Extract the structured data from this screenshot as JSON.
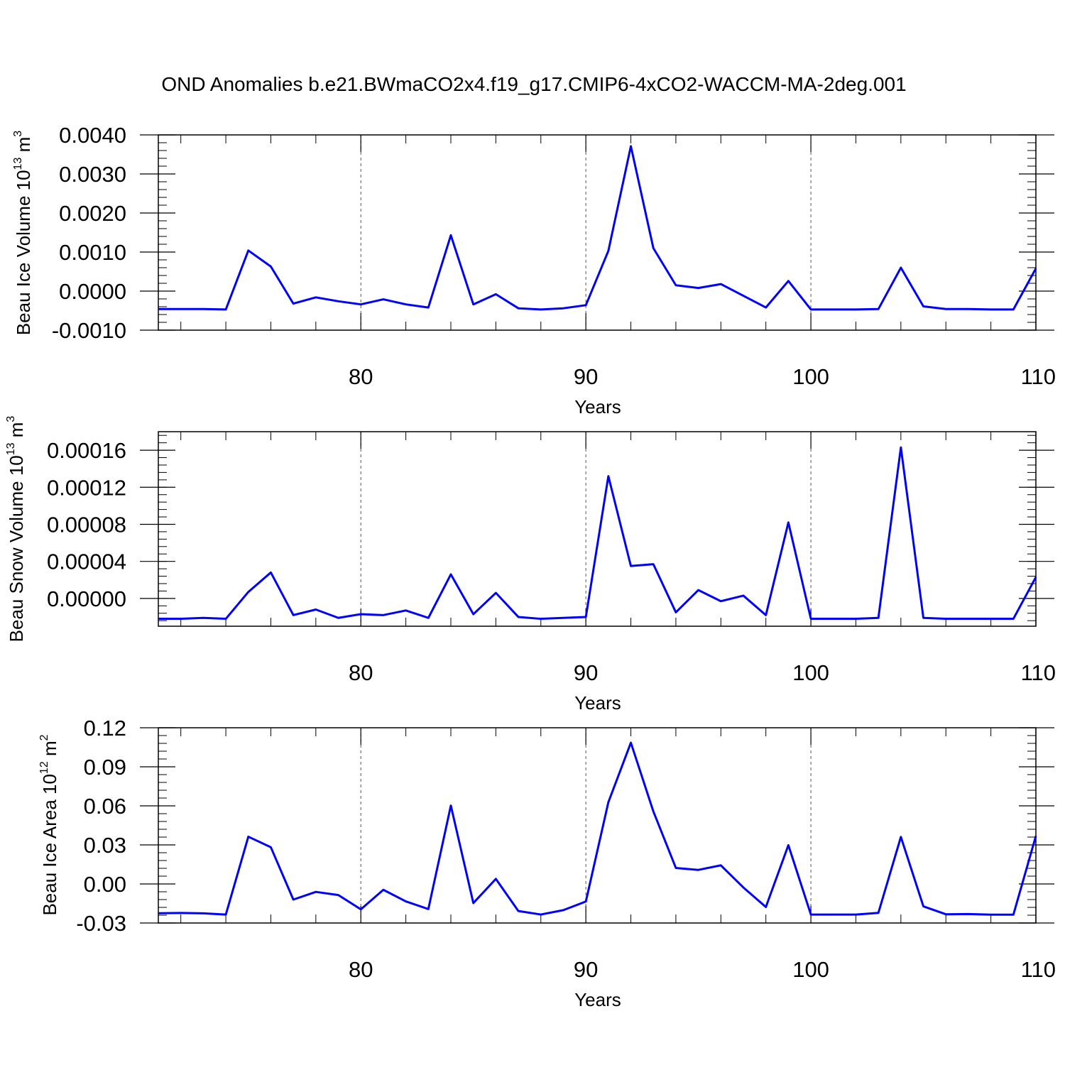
{
  "title": "OND Anomalies b.e21.BWmaCO2x4.f19_g17.CMIP6-4xCO2-WACCM-MA-2deg.001",
  "line_color": "#0000ff",
  "chart_data": [
    {
      "type": "line",
      "ylabel": "Beau Ice Volume",
      "yunit_base": "10",
      "yunit_exp": "13",
      "yunit_unit": "m",
      "yunit_unit_exp": "3",
      "xlabel": "Years",
      "xlim": [
        71,
        110
      ],
      "ylim": [
        -0.001,
        0.004
      ],
      "xticks": [
        80,
        90,
        100,
        110
      ],
      "xtick_labels": [
        "80",
        "90",
        "100",
        "110"
      ],
      "yticks": [
        -0.001,
        0.0,
        0.001,
        0.002,
        0.003,
        0.004
      ],
      "ytick_labels": [
        "-0.0010",
        "0.0000",
        "0.0010",
        "0.0020",
        "0.0030",
        "0.0040"
      ],
      "grid_x": "dashed vertical at major ticks",
      "x": [
        71,
        72,
        73,
        74,
        75,
        76,
        77,
        78,
        79,
        80,
        81,
        82,
        83,
        84,
        85,
        86,
        87,
        88,
        89,
        90,
        91,
        92,
        93,
        94,
        95,
        96,
        97,
        98,
        99,
        100,
        101,
        102,
        103,
        104,
        105,
        106,
        107,
        108,
        109,
        110
      ],
      "y": [
        -0.00046,
        -0.00046,
        -0.00046,
        -0.00047,
        0.00104,
        0.00063,
        -0.00032,
        -0.00016,
        -0.00026,
        -0.00034,
        -0.00021,
        -0.00034,
        -0.00042,
        0.00143,
        -0.00034,
        -8e-05,
        -0.00044,
        -0.00047,
        -0.00044,
        -0.00036,
        0.00103,
        0.00371,
        0.0011,
        0.00015,
        8e-05,
        0.00018,
        -0.00012,
        -0.00042,
        0.00026,
        -0.00047,
        -0.00047,
        -0.00047,
        -0.00046,
        0.0006,
        -0.00039,
        -0.00046,
        -0.00046,
        -0.00047,
        -0.00047,
        0.00058
      ]
    },
    {
      "type": "line",
      "ylabel": "Beau Snow Volume",
      "yunit_base": "10",
      "yunit_exp": "13",
      "yunit_unit": "m",
      "yunit_unit_exp": "3",
      "xlabel": "Years",
      "xlim": [
        71,
        110
      ],
      "ylim": [
        -3e-05,
        0.00018
      ],
      "xticks": [
        80,
        90,
        100,
        110
      ],
      "xtick_labels": [
        "80",
        "90",
        "100",
        "110"
      ],
      "yticks": [
        0.0,
        4e-05,
        8e-05,
        0.00012,
        0.00016
      ],
      "ytick_labels": [
        "0.00000",
        "0.00004",
        "0.00008",
        "0.00012",
        "0.00016"
      ],
      "grid_x": "dashed vertical at major ticks",
      "x": [
        71,
        72,
        73,
        74,
        75,
        76,
        77,
        78,
        79,
        80,
        81,
        82,
        83,
        84,
        85,
        86,
        87,
        88,
        89,
        90,
        91,
        92,
        93,
        94,
        95,
        96,
        97,
        98,
        99,
        100,
        101,
        102,
        103,
        104,
        105,
        106,
        107,
        108,
        109,
        110
      ],
      "y": [
        -2.2e-05,
        -2.2e-05,
        -2.1e-05,
        -2.2e-05,
        7e-06,
        2.8e-05,
        -1.8e-05,
        -1.2e-05,
        -2.1e-05,
        -1.7e-05,
        -1.8e-05,
        -1.3e-05,
        -2.1e-05,
        2.6e-05,
        -1.7e-05,
        6e-06,
        -2e-05,
        -2.2e-05,
        -2.1e-05,
        -2e-05,
        0.000132,
        3.5e-05,
        3.7e-05,
        -1.5e-05,
        9e-06,
        -3e-06,
        3e-06,
        -1.8e-05,
        8.2e-05,
        -2.2e-05,
        -2.2e-05,
        -2.2e-05,
        -2.1e-05,
        0.000163,
        -2.1e-05,
        -2.2e-05,
        -2.2e-05,
        -2.2e-05,
        -2.2e-05,
        2.3e-05
      ]
    },
    {
      "type": "line",
      "ylabel": "Beau Ice Area",
      "yunit_base": "10",
      "yunit_exp": "12",
      "yunit_unit": "m",
      "yunit_unit_exp": "2",
      "xlabel": "Years",
      "xlim": [
        71,
        110
      ],
      "ylim": [
        -0.03,
        0.12
      ],
      "xticks": [
        80,
        90,
        100,
        110
      ],
      "xtick_labels": [
        "80",
        "90",
        "100",
        "110"
      ],
      "yticks": [
        -0.03,
        0.0,
        0.03,
        0.06,
        0.09,
        0.12
      ],
      "ytick_labels": [
        "-0.03",
        "0.00",
        "0.03",
        "0.06",
        "0.09",
        "0.12"
      ],
      "grid_x": "dashed vertical at major ticks",
      "x": [
        71,
        72,
        73,
        74,
        75,
        76,
        77,
        78,
        79,
        80,
        81,
        82,
        83,
        84,
        85,
        86,
        87,
        88,
        89,
        90,
        91,
        92,
        93,
        94,
        95,
        96,
        97,
        98,
        99,
        100,
        101,
        102,
        103,
        104,
        105,
        106,
        107,
        108,
        109,
        110
      ],
      "y": [
        -0.0225,
        -0.0223,
        -0.0226,
        -0.0235,
        0.0363,
        0.0282,
        -0.012,
        -0.0061,
        -0.0085,
        -0.0195,
        -0.0045,
        -0.0134,
        -0.0193,
        0.0602,
        -0.0147,
        0.0039,
        -0.0208,
        -0.0235,
        -0.0201,
        -0.0135,
        0.0628,
        0.1085,
        0.0557,
        0.0123,
        0.0108,
        0.0143,
        -0.0027,
        -0.0177,
        0.0298,
        -0.0235,
        -0.0235,
        -0.0235,
        -0.0222,
        0.0361,
        -0.0172,
        -0.0233,
        -0.0231,
        -0.0236,
        -0.0236,
        0.0369
      ]
    }
  ]
}
